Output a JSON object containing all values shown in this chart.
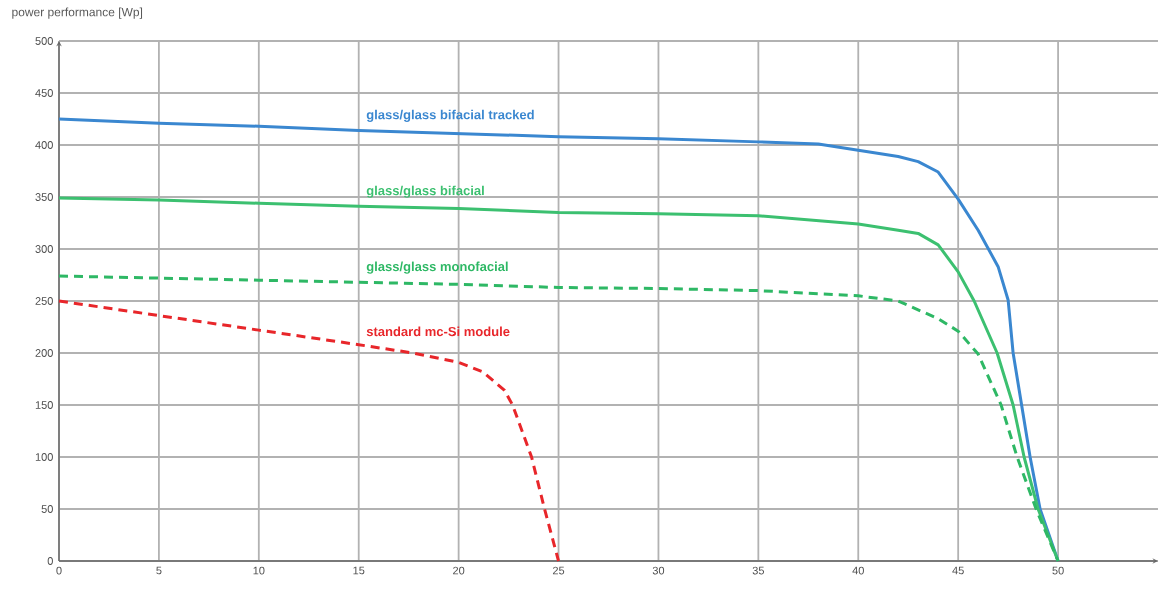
{
  "chart_data": {
    "type": "line",
    "ylabel": "power performance [Wp]",
    "xlim": [
      0,
      55
    ],
    "xticks": [
      0,
      5,
      10,
      15,
      20,
      25,
      30,
      35,
      40,
      45,
      50
    ],
    "ylim": [
      0,
      500
    ],
    "yticks": [
      0,
      50,
      100,
      150,
      200,
      250,
      300,
      350,
      400,
      450,
      500
    ],
    "grid": true,
    "marker": "none",
    "series": [
      {
        "name": "glass/glass bifacial tracked",
        "color": "#3a87d0",
        "line_style": "solid",
        "x": [
          0,
          5,
          10,
          15,
          20,
          25,
          30,
          35,
          38,
          40,
          42,
          43,
          44,
          45,
          46,
          47,
          47.5,
          47.75,
          48.6,
          49.1,
          50
        ],
        "values": [
          425,
          421,
          418,
          414,
          411,
          408,
          406,
          403,
          401,
          395,
          389,
          384,
          374,
          348,
          318,
          283,
          251,
          200,
          100,
          50,
          0
        ]
      },
      {
        "name": "glass/glass bifacial",
        "color": "#3cc070",
        "line_style": "solid",
        "x": [
          0,
          5,
          10,
          15,
          20,
          25,
          30,
          35,
          40,
          42,
          43,
          44,
          45,
          45.8,
          46.95,
          47.75,
          48.3,
          49,
          50
        ],
        "values": [
          349,
          347,
          344,
          341,
          339,
          335,
          334,
          332,
          324,
          318,
          315,
          304,
          278,
          250,
          200,
          150,
          100,
          50,
          0
        ]
      },
      {
        "name": "glass/glass monofacial",
        "color": "#2eb865",
        "line_style": "dashed",
        "x": [
          0,
          5,
          10,
          15,
          20,
          25,
          30,
          35,
          40,
          42,
          44,
          45,
          46,
          47.15,
          47.95,
          48.9,
          50
        ],
        "values": [
          274,
          272,
          270,
          268,
          266,
          263,
          262,
          260,
          255,
          250,
          233,
          221,
          199,
          150,
          100,
          50,
          0
        ]
      },
      {
        "name": "standard mc-Si module",
        "color": "#e8262a",
        "line_style": "dashed",
        "x": [
          0,
          5,
          10,
          15,
          17.7,
          20,
          21.2,
          22.3,
          22.7,
          23.65,
          24.3,
          25
        ],
        "values": [
          250,
          236,
          222,
          208,
          200,
          191,
          182,
          164,
          150,
          100,
          50,
          0
        ]
      }
    ]
  }
}
